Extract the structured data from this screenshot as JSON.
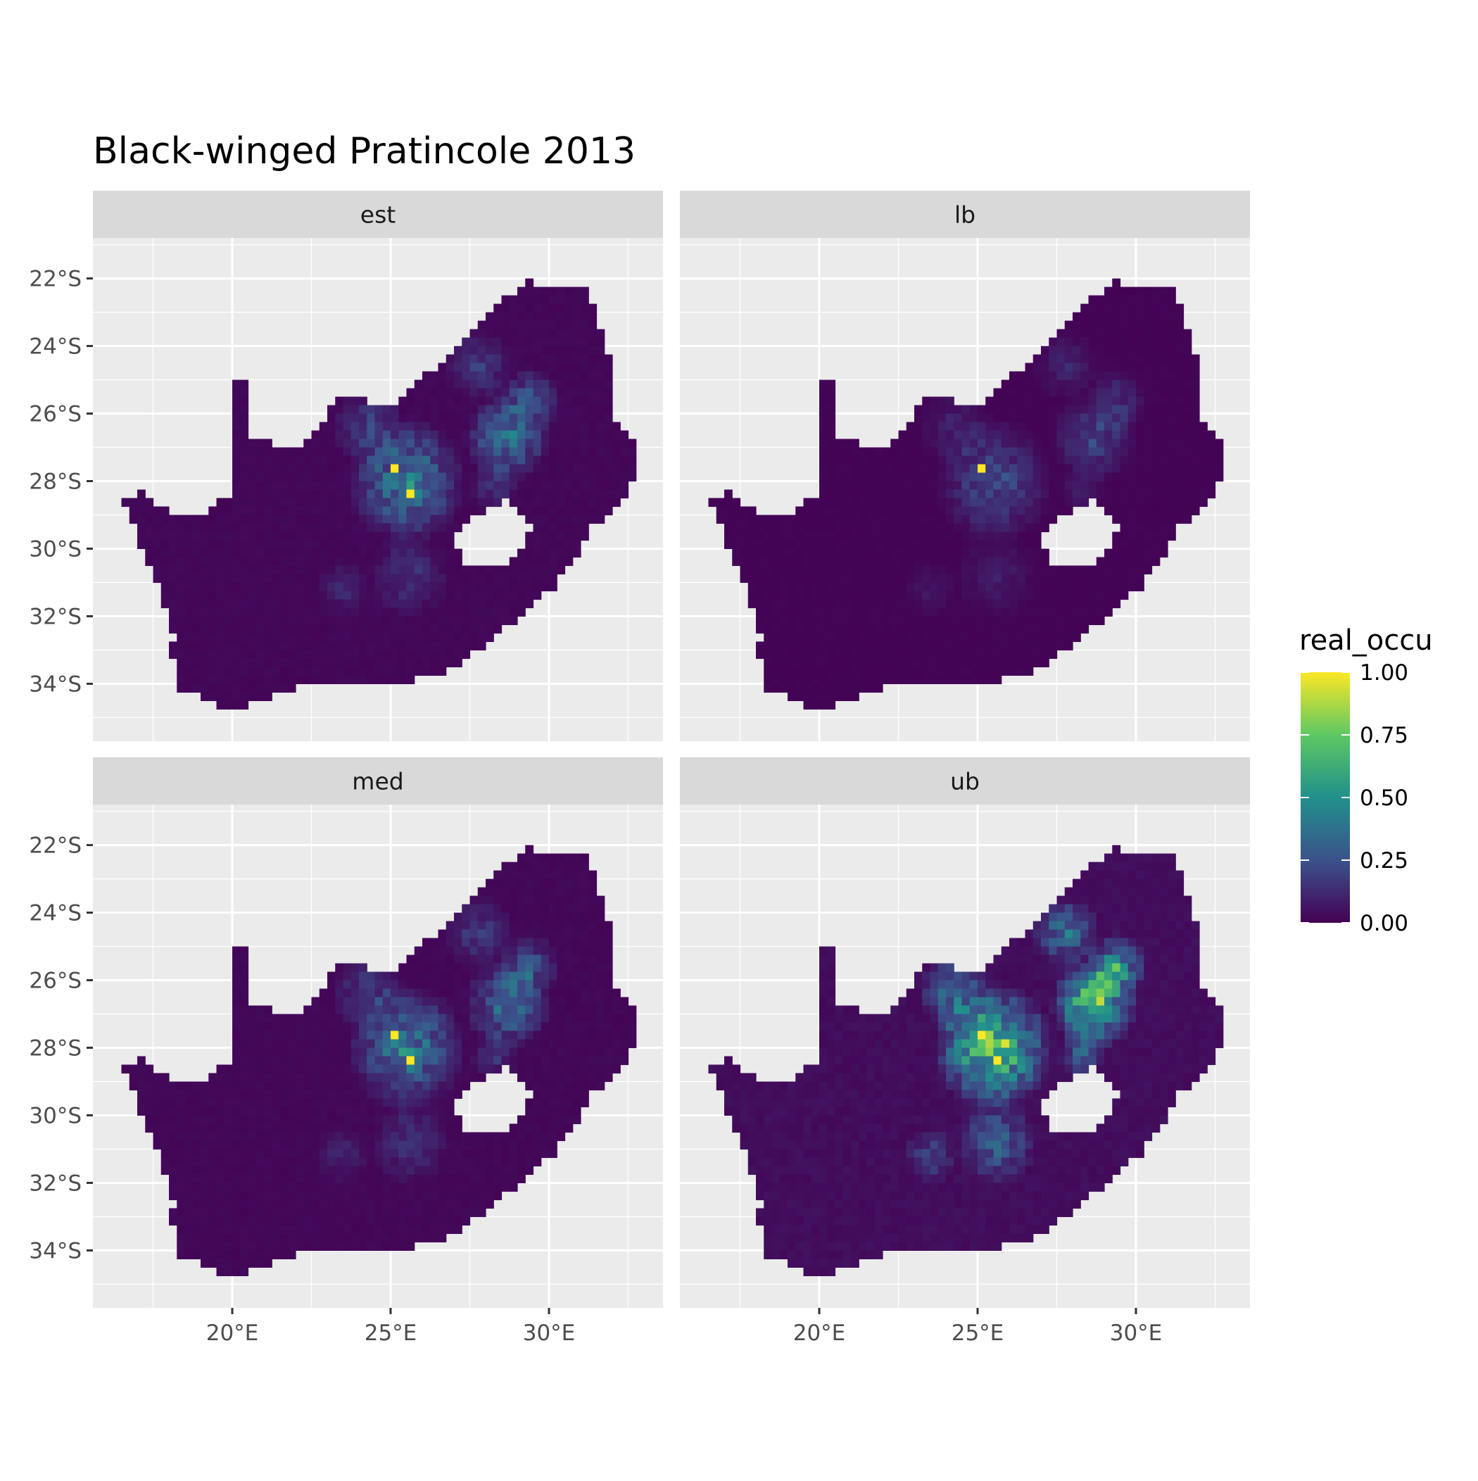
{
  "title": "Black-winged Pratincole 2013",
  "facets": [
    {
      "label": "est",
      "intensity": 1.0
    },
    {
      "label": "lb",
      "intensity": 0.55
    },
    {
      "label": "med",
      "intensity": 1.0
    },
    {
      "label": "ub",
      "intensity": 1.9
    }
  ],
  "axes": {
    "x_ticks": [
      {
        "value": 20,
        "label": "20°E"
      },
      {
        "value": 25,
        "label": "25°E"
      },
      {
        "value": 30,
        "label": "30°E"
      }
    ],
    "y_ticks": [
      {
        "value": -22,
        "label": "22°S"
      },
      {
        "value": -24,
        "label": "24°S"
      },
      {
        "value": -26,
        "label": "26°S"
      },
      {
        "value": -28,
        "label": "28°S"
      },
      {
        "value": -30,
        "label": "30°S"
      },
      {
        "value": -32,
        "label": "32°S"
      },
      {
        "value": -34,
        "label": "34°S"
      }
    ],
    "xlim": [
      15.6,
      33.6
    ],
    "ylim": [
      -35.7,
      -20.8
    ]
  },
  "legend": {
    "title": "real_occu",
    "placement": "right",
    "breaks": [
      {
        "value": 1.0,
        "label": "1.00"
      },
      {
        "value": 0.75,
        "label": "0.75"
      },
      {
        "value": 0.5,
        "label": "0.50"
      },
      {
        "value": 0.25,
        "label": "0.25"
      },
      {
        "value": 0.0,
        "label": "0.00"
      }
    ],
    "palette": [
      "#440154",
      "#3b528b",
      "#21908c",
      "#5dc863",
      "#fde725"
    ]
  },
  "colors": {
    "panel_background": "#ebebeb",
    "strip_background": "#d9d9d9",
    "grid": "#ffffff",
    "axis_text": "#4d4d4d"
  },
  "chart_data": {
    "type": "heatmap",
    "variable": "real_occu",
    "value_range": [
      0,
      1
    ],
    "region_outline": [
      [
        20.0,
        -24.8
      ],
      [
        20.5,
        -25.2
      ],
      [
        20.6,
        -26.7
      ],
      [
        21.2,
        -26.9
      ],
      [
        22.3,
        -26.9
      ],
      [
        22.6,
        -26.5
      ],
      [
        23.2,
        -25.7
      ],
      [
        23.6,
        -25.5
      ],
      [
        24.5,
        -25.7
      ],
      [
        25.3,
        -25.7
      ],
      [
        25.8,
        -25.1
      ],
      [
        26.5,
        -24.6
      ],
      [
        27.2,
        -23.8
      ],
      [
        27.9,
        -23.2
      ],
      [
        28.6,
        -22.6
      ],
      [
        29.4,
        -22.1
      ],
      [
        30.8,
        -22.3
      ],
      [
        31.3,
        -22.4
      ],
      [
        31.5,
        -23.2
      ],
      [
        32.0,
        -24.5
      ],
      [
        32.0,
        -26.0
      ],
      [
        32.6,
        -26.8
      ],
      [
        32.9,
        -27.2
      ],
      [
        32.6,
        -28.2
      ],
      [
        32.0,
        -28.9
      ],
      [
        31.3,
        -29.4
      ],
      [
        30.8,
        -30.3
      ],
      [
        30.2,
        -31.1
      ],
      [
        29.2,
        -31.9
      ],
      [
        28.3,
        -32.6
      ],
      [
        27.6,
        -33.1
      ],
      [
        26.6,
        -33.7
      ],
      [
        25.6,
        -33.9
      ],
      [
        24.8,
        -34.1
      ],
      [
        23.6,
        -34.0
      ],
      [
        22.5,
        -34.0
      ],
      [
        21.3,
        -34.4
      ],
      [
        20.0,
        -34.8
      ],
      [
        19.3,
        -34.6
      ],
      [
        18.8,
        -34.3
      ],
      [
        18.4,
        -34.3
      ],
      [
        18.3,
        -33.6
      ],
      [
        17.9,
        -32.8
      ],
      [
        18.2,
        -32.6
      ],
      [
        17.9,
        -31.7
      ],
      [
        17.5,
        -30.8
      ],
      [
        17.1,
        -29.9
      ],
      [
        16.6,
        -28.6
      ],
      [
        17.1,
        -28.2
      ],
      [
        17.4,
        -28.6
      ],
      [
        18.1,
        -28.9
      ],
      [
        19.3,
        -28.9
      ],
      [
        19.6,
        -28.5
      ],
      [
        20.0,
        -28.4
      ]
    ],
    "excluded_region_outline": [
      [
        27.0,
        -29.8
      ],
      [
        27.3,
        -29.3
      ],
      [
        28.0,
        -28.9
      ],
      [
        28.6,
        -28.6
      ],
      [
        29.1,
        -28.9
      ],
      [
        29.4,
        -29.4
      ],
      [
        29.3,
        -29.9
      ],
      [
        28.8,
        -30.4
      ],
      [
        28.1,
        -30.6
      ],
      [
        27.6,
        -30.6
      ],
      [
        27.2,
        -30.2
      ]
    ],
    "hotspots": [
      {
        "lon": 25.5,
        "lat": -28.0,
        "radius": 1.9,
        "value": 0.42
      },
      {
        "lon": 28.7,
        "lat": -26.7,
        "radius": 1.4,
        "value": 0.38
      },
      {
        "lon": 29.4,
        "lat": -25.6,
        "radius": 1.0,
        "value": 0.25
      },
      {
        "lon": 27.8,
        "lat": -24.6,
        "radius": 1.1,
        "value": 0.18
      },
      {
        "lon": 24.3,
        "lat": -26.4,
        "radius": 1.2,
        "value": 0.18
      },
      {
        "lon": 25.6,
        "lat": -30.8,
        "radius": 1.3,
        "value": 0.15
      },
      {
        "lon": 23.5,
        "lat": -31.2,
        "radius": 0.9,
        "value": 0.1
      },
      {
        "lon": 28.3,
        "lat": -28.2,
        "radius": 0.8,
        "value": 0.15
      }
    ],
    "facet_values": [
      "est",
      "lb",
      "med",
      "ub"
    ]
  }
}
